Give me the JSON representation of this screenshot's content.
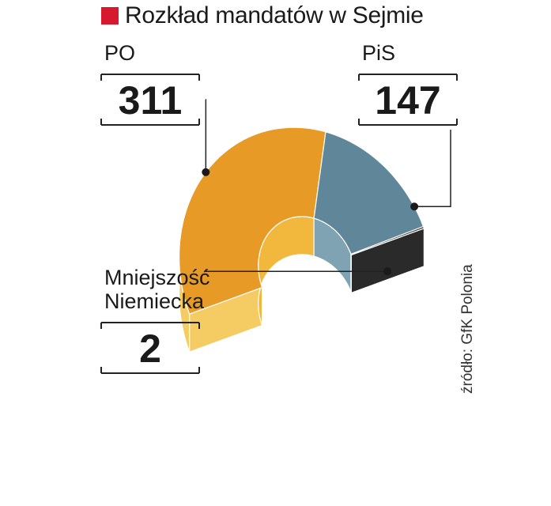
{
  "chart_data": {
    "type": "pie",
    "title": "Rozkład mandatów w Sejmie",
    "categories": [
      "PO",
      "PiS",
      "Mniejszość Niemiecka"
    ],
    "values": [
      311,
      147,
      2
    ],
    "label_lines": [
      [
        "PO"
      ],
      [
        "PiS"
      ],
      [
        "Mniejszość",
        "Niemiecka"
      ]
    ],
    "value_labels": [
      "311",
      "147",
      "2"
    ],
    "colors": {
      "top": [
        "#e89a27",
        "#5f8799",
        "#3a3a3a"
      ],
      "outer_side": [
        "#f5cc63",
        "#9ebfcd",
        "#2a2a2a"
      ],
      "inner_side": [
        "#f2b83e",
        "#7fa3b3",
        "#222222"
      ],
      "accent": "#d6192f"
    },
    "variant": "3d half-donut",
    "source": "źródło: GfK Polonia"
  }
}
